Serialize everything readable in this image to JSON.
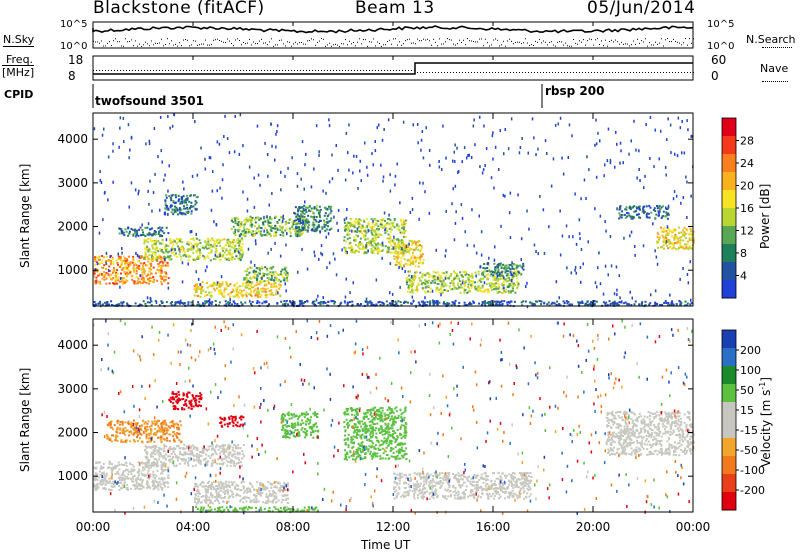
{
  "header": {
    "radar": "Blackstone (fitACF)",
    "beam": "Beam 13",
    "date": "05/Jun/2014"
  },
  "panels": {
    "nsky_label": "N.Sky",
    "nsearch_label": "N.Search",
    "nsky_ticks": [
      "10^5",
      "10^0"
    ],
    "freq_label_1": "Freq.",
    "freq_label_2": "[MHz]",
    "freq_ticks": [
      "18",
      "8"
    ],
    "nave_label": "Nave",
    "nave_ticks": [
      "60",
      "0"
    ],
    "cpid_label": "CPID",
    "cpid_modes": [
      "twofsound 3501",
      "rbsp 200"
    ]
  },
  "colorbars": {
    "power": {
      "label": "Power [dB]",
      "ticks": [
        "28",
        "24",
        "20",
        "16",
        "12",
        "8",
        "4"
      ],
      "colors": [
        "#e0001c",
        "#f43a1c",
        "#fb7f1e",
        "#f9b120",
        "#f6e324",
        "#b8d532",
        "#58a656",
        "#1f7f5a",
        "#2353a0",
        "#2040d8"
      ]
    },
    "velocity": {
      "label_1": "Velocity [m s",
      "label_sup": "-1",
      "label_2": "]",
      "ticks": [
        "200",
        "100",
        "50",
        "15",
        "-15",
        "-50",
        "-100",
        "-200"
      ],
      "colors": [
        "#1a3fb0",
        "#2a6ec8",
        "#1c8a2a",
        "#5cc040",
        "#c7c7c0",
        "#c7c7c0",
        "#f1a52a",
        "#f27a1e",
        "#e8401a",
        "#e00010"
      ]
    }
  },
  "axes": {
    "ylabel": "Slant Range [km]",
    "yticks": [
      "4000",
      "3000",
      "2000",
      "1000"
    ],
    "xticks": [
      "00:00",
      "04:00",
      "08:00",
      "12:00",
      "16:00",
      "20:00",
      "00:00"
    ],
    "xlabel": "Time UT"
  },
  "chart_data": [
    {
      "type": "heatmap",
      "name": "power",
      "x_range_hours": [
        0,
        24
      ],
      "ylim_km": [
        180,
        4600
      ],
      "regions": [
        {
          "t": [
            0.0,
            3.0
          ],
          "r": [
            700,
            1350
          ],
          "p": 24
        },
        {
          "t": [
            2.0,
            6.0
          ],
          "r": [
            1250,
            1750
          ],
          "p": 16
        },
        {
          "t": [
            5.5,
            8.5
          ],
          "r": [
            1800,
            2250
          ],
          "p": 14
        },
        {
          "t": [
            8.0,
            9.5
          ],
          "r": [
            1900,
            2500
          ],
          "p": 10
        },
        {
          "t": [
            4.0,
            7.5
          ],
          "r": [
            400,
            750
          ],
          "p": 20
        },
        {
          "t": [
            6.0,
            7.8
          ],
          "r": [
            750,
            1100
          ],
          "p": 14
        },
        {
          "t": [
            2.8,
            4.2
          ],
          "r": [
            2300,
            2750
          ],
          "p": 8
        },
        {
          "t": [
            10.0,
            12.5
          ],
          "r": [
            1400,
            2200
          ],
          "p": 16
        },
        {
          "t": [
            12.0,
            13.2
          ],
          "r": [
            1100,
            1700
          ],
          "p": 20
        },
        {
          "t": [
            12.5,
            17.0
          ],
          "r": [
            500,
            1000
          ],
          "p": 16
        },
        {
          "t": [
            15.5,
            17.2
          ],
          "r": [
            900,
            1200
          ],
          "p": 10
        },
        {
          "t": [
            21.0,
            23.0
          ],
          "r": [
            2200,
            2500
          ],
          "p": 8
        },
        {
          "t": [
            22.5,
            24.0
          ],
          "r": [
            1500,
            2000
          ],
          "p": 20
        },
        {
          "t": [
            1.0,
            3.0
          ],
          "r": [
            1800,
            2000
          ],
          "p": 8
        },
        {
          "t": [
            0.0,
            24.0
          ],
          "r": [
            200,
            320
          ],
          "p": 6
        }
      ]
    },
    {
      "type": "heatmap",
      "name": "velocity",
      "x_range_hours": [
        0,
        24
      ],
      "ylim_km": [
        180,
        4600
      ],
      "regions": [
        {
          "t": [
            0.0,
            3.0
          ],
          "r": [
            700,
            1350
          ],
          "v": 0
        },
        {
          "t": [
            2.0,
            6.0
          ],
          "r": [
            1250,
            1750
          ],
          "v": 0
        },
        {
          "t": [
            0.5,
            3.5
          ],
          "r": [
            1800,
            2300
          ],
          "v": -50
        },
        {
          "t": [
            3.0,
            4.3
          ],
          "r": [
            2550,
            2950
          ],
          "v": -200
        },
        {
          "t": [
            5.0,
            6.0
          ],
          "r": [
            2150,
            2400
          ],
          "v": -200
        },
        {
          "t": [
            7.5,
            9.0
          ],
          "r": [
            1900,
            2500
          ],
          "v": 50
        },
        {
          "t": [
            4.0,
            7.8
          ],
          "r": [
            400,
            900
          ],
          "v": 0
        },
        {
          "t": [
            10.0,
            12.5
          ],
          "r": [
            1400,
            2600
          ],
          "v": 50
        },
        {
          "t": [
            12.0,
            17.5
          ],
          "r": [
            500,
            1100
          ],
          "v": 0
        },
        {
          "t": [
            20.5,
            24.0
          ],
          "r": [
            1500,
            2500
          ],
          "v": 0
        },
        {
          "t": [
            4.0,
            9.0
          ],
          "r": [
            200,
            320
          ],
          "v": 50
        }
      ]
    }
  ]
}
